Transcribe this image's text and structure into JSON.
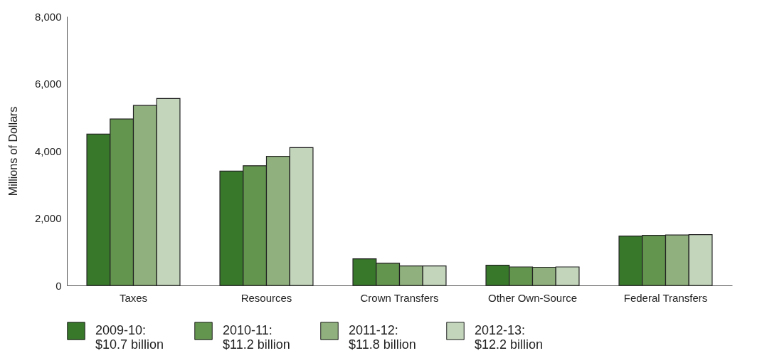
{
  "chart_data": {
    "type": "bar",
    "ylabel": "Millions of Dollars",
    "categories": [
      "Taxes",
      "Resources",
      "Crown Transfers",
      "Other Own-Source",
      "Federal Transfers"
    ],
    "series": [
      {
        "name": "2009-10: $10.7 billion",
        "color": "#37782b",
        "values": [
          4500,
          3400,
          790,
          600,
          1470
        ]
      },
      {
        "name": "2010-11: $11.2 billion",
        "color": "#64954f",
        "values": [
          4950,
          3560,
          660,
          550,
          1490
        ]
      },
      {
        "name": "2011-12: $11.8 billion",
        "color": "#90b17d",
        "values": [
          5350,
          3840,
          580,
          540,
          1500
        ]
      },
      {
        "name": "2012-13: $12.2 billion",
        "color": "#c3d5bb",
        "values": [
          5560,
          4100,
          580,
          550,
          1510
        ]
      }
    ],
    "ylim": [
      0,
      8000
    ],
    "yticks": [
      0,
      {
        "value": 2000,
        "label": "2,000"
      },
      {
        "value": 4000,
        "label": "4,000"
      },
      {
        "value": 6000,
        "label": "6,000"
      },
      {
        "value": 8000,
        "label": "8,000"
      }
    ],
    "grid": false,
    "legend": "bottom"
  }
}
